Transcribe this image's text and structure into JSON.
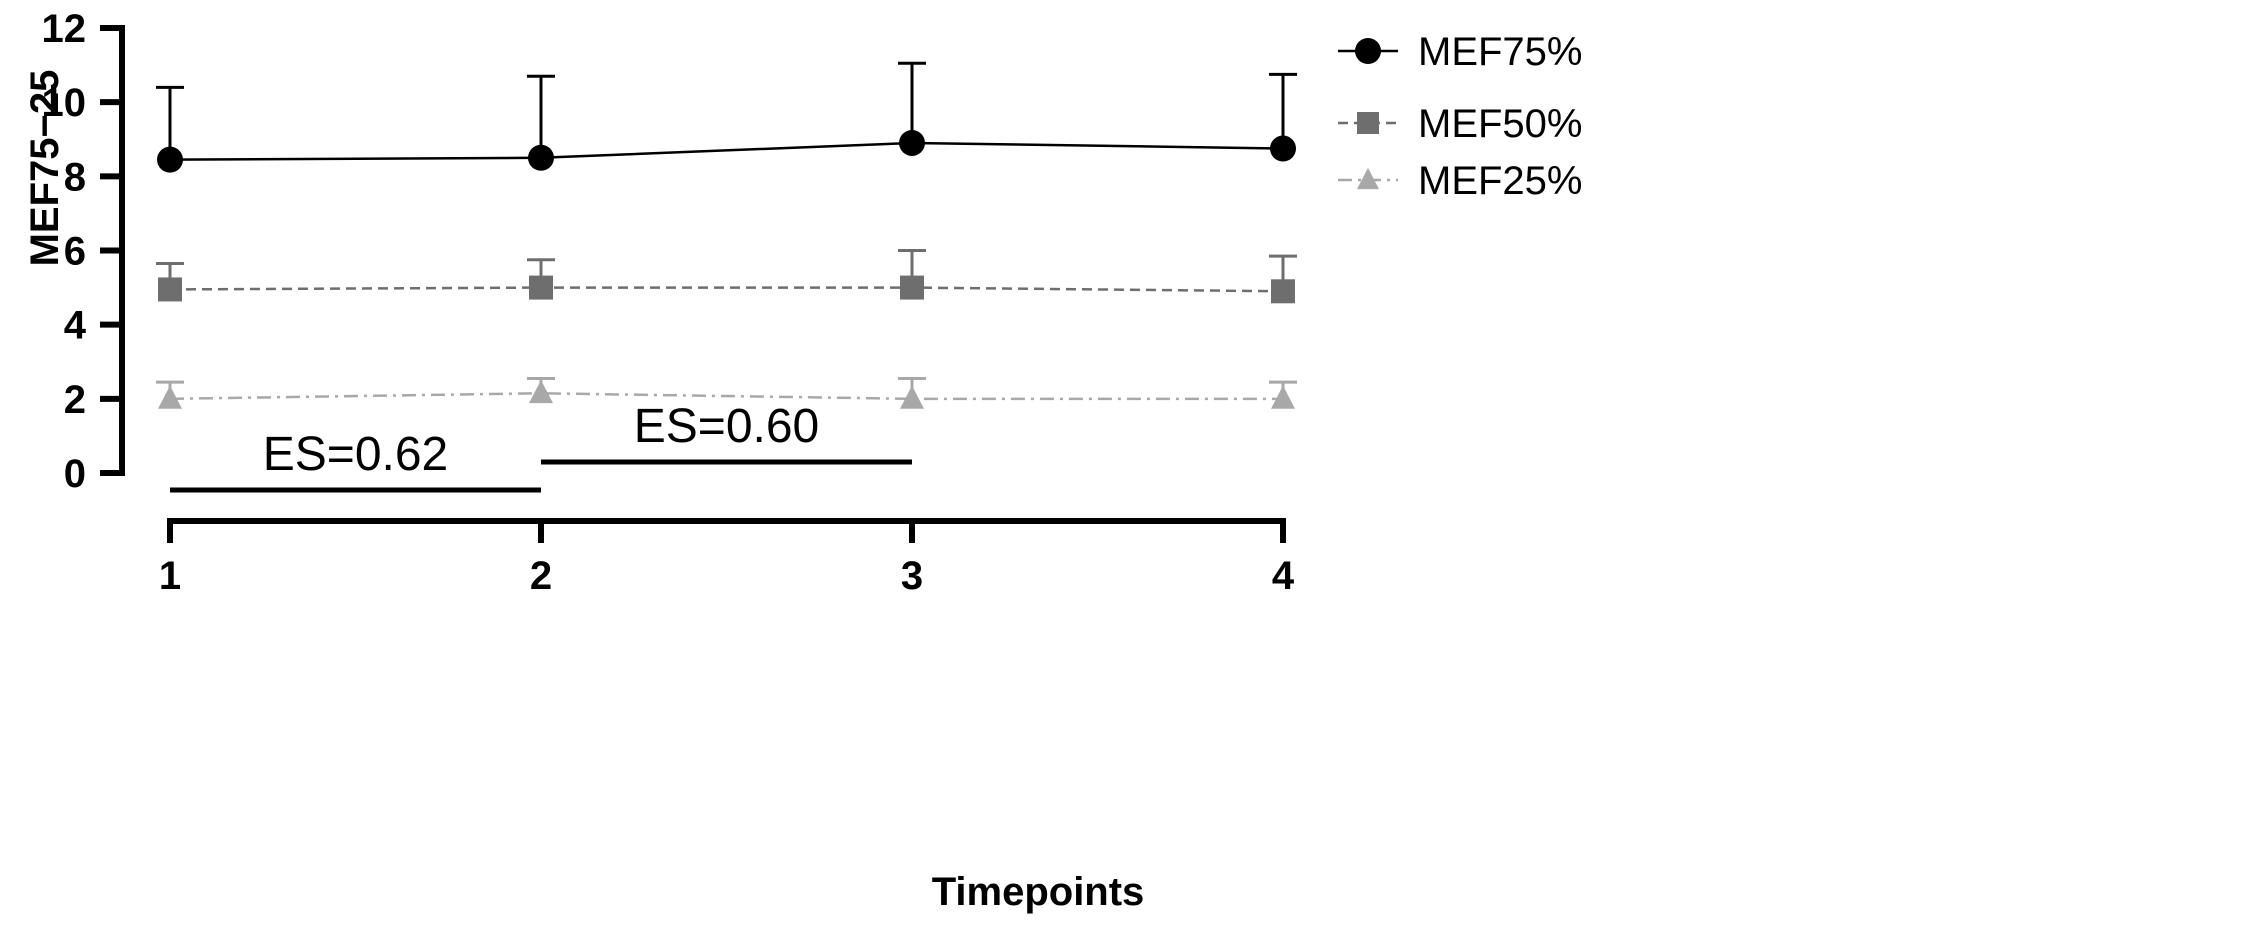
{
  "chart_data": {
    "type": "line",
    "title": "",
    "xlabel": "Timepoints",
    "ylabel": "MEF75−25",
    "x": [
      "1",
      "2",
      "3",
      "4"
    ],
    "ylim": [
      0,
      12
    ],
    "yticks": [
      "0",
      "2",
      "4",
      "6",
      "8",
      "10",
      "12"
    ],
    "grid": false,
    "legend_position": "top-right",
    "series": [
      {
        "name": "MEF75%",
        "values": [
          8.45,
          8.5,
          8.9,
          8.75
        ],
        "error_upper": [
          10.4,
          10.7,
          11.05,
          10.75
        ],
        "marker": "circle",
        "line_style": "solid",
        "color": "#000000"
      },
      {
        "name": "MEF50%",
        "values": [
          4.95,
          5.0,
          5.0,
          4.9
        ],
        "error_upper": [
          5.65,
          5.75,
          6.0,
          5.85
        ],
        "marker": "square",
        "line_style": "dashed",
        "color": "#6e6e6e"
      },
      {
        "name": "MEF25%",
        "values": [
          2.0,
          2.15,
          2.0,
          2.0
        ],
        "error_upper": [
          2.45,
          2.55,
          2.55,
          2.45
        ],
        "marker": "triangle",
        "line_style": "dash-dot",
        "color": "#a8a8a8"
      }
    ],
    "annotations": [
      {
        "text": "ES=0.62",
        "from": "1",
        "to": "2"
      },
      {
        "text": "ES=0.60",
        "from": "2",
        "to": "3"
      }
    ]
  }
}
